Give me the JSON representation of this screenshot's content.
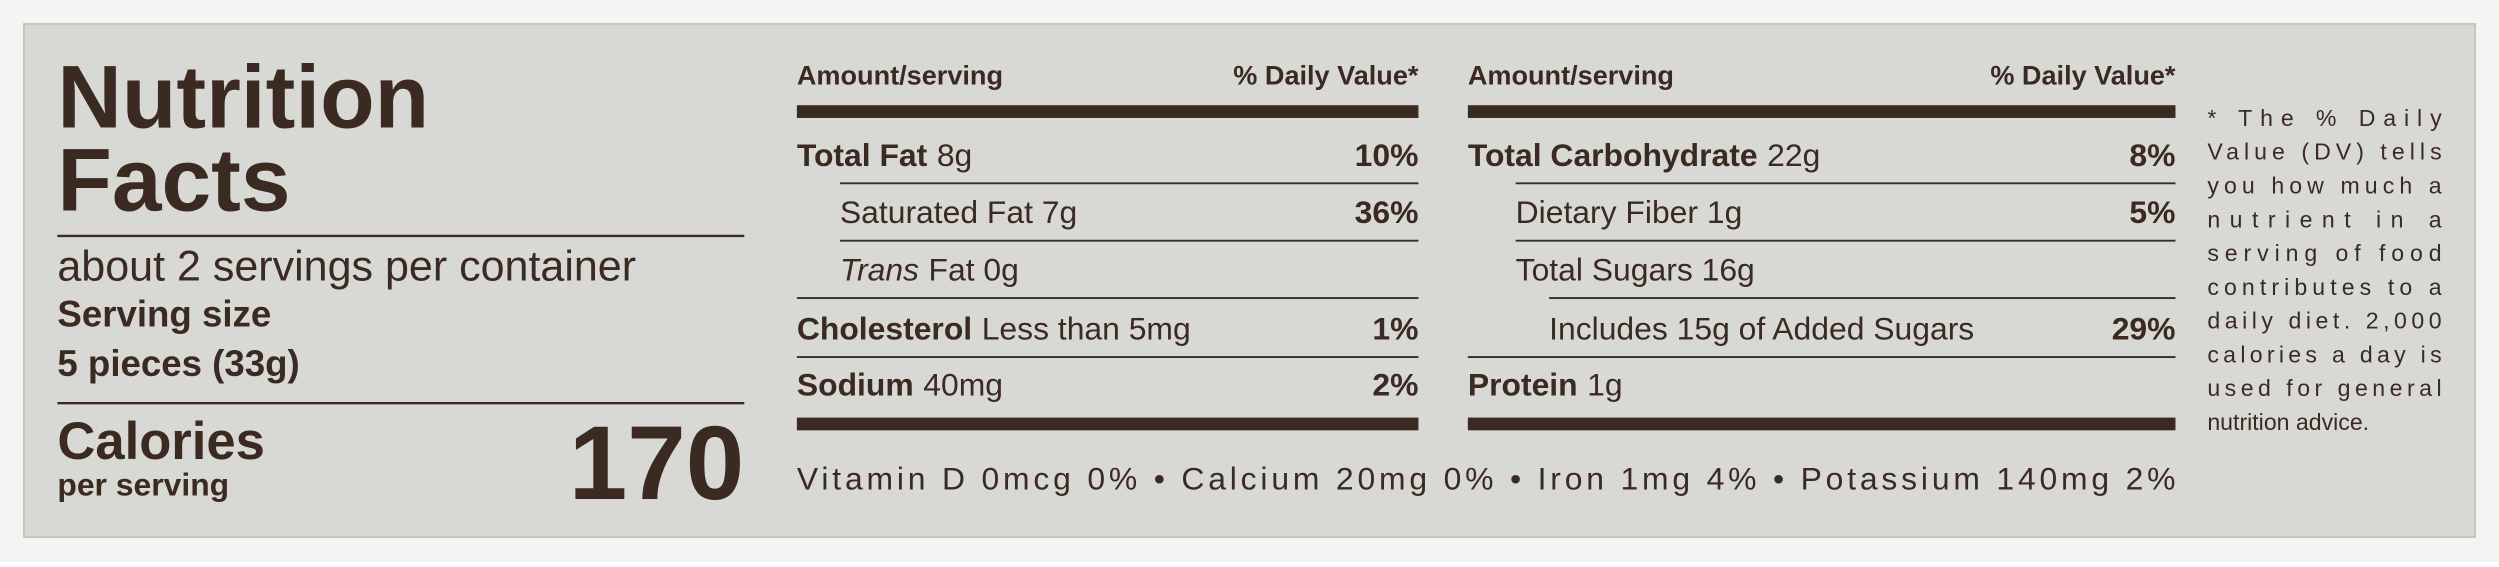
{
  "title_line1": "Nutrition",
  "title_line2": "Facts",
  "servings_per_container": "about 2 servings per container",
  "serving_size_label": "Serving size",
  "serving_size": "5 pieces (33g)",
  "calories_label": "Calories",
  "calories_sub": "per serving",
  "calories": 170,
  "columns": [
    {
      "header": {
        "amount": "Amount/serving",
        "dv": "% Daily Value*"
      },
      "rows": [
        {
          "name": "Total Fat",
          "amount": "8g",
          "dv": "10%"
        },
        {
          "amount": "Saturated Fat 7g",
          "dv": "36%"
        },
        {
          "italic": "Trans",
          "amount": "Fat 0g"
        },
        {
          "name": "Cholesterol",
          "amount": "Less than 5mg",
          "dv": "1%"
        },
        {
          "name": "Sodium",
          "amount": "40mg",
          "dv": "2%"
        }
      ]
    },
    {
      "header": {
        "amount": "Amount/serving",
        "dv": "% Daily Value*"
      },
      "rows": [
        {
          "name": "Total Carbohydrate",
          "amount": "22g",
          "dv": "8%"
        },
        {
          "amount": "Dietary Fiber 1g",
          "dv": "5%"
        },
        {
          "amount": "Total Sugars 16g"
        },
        {
          "amount": "Includes 15g of Added Sugars",
          "dv": "29%"
        },
        {
          "name": "Protein",
          "amount": "1g"
        }
      ]
    }
  ],
  "vitamins": "Vitamin D 0mcg 0% • Calcium 20mg 0% • Iron 1mg 4% • Potassium 140mg 2%",
  "footnote": [
    "* The % Daily",
    "Value (DV) tells",
    "you how much a",
    "nutrient in a",
    "serving of food",
    "contributes to a",
    "daily diet. 2,000",
    "calories a day is",
    "used for general",
    "nutrition advice."
  ]
}
